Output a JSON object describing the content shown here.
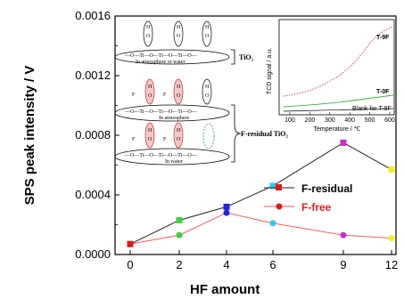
{
  "chart_data": {
    "type": "line",
    "x": [
      0,
      2,
      4,
      6,
      9,
      12
    ],
    "xlabel": "HF amount",
    "ylabel": "SPS peak intensity / V",
    "ylim": [
      0,
      0.0016
    ],
    "xticks": [
      "0",
      "2",
      "4",
      "6",
      "9",
      "12"
    ],
    "yticks": [
      "0.0000",
      "0.0004",
      "0.0008",
      "0.0012",
      "0.0016"
    ],
    "legend_position": "right-center",
    "series": [
      {
        "name": "F-residual",
        "values": [
          7e-05,
          0.00023,
          0.00032,
          0.00046,
          0.00075,
          0.00057
        ],
        "line_color": "#222222",
        "label_color": "#000000"
      },
      {
        "name": "F-free",
        "values": [
          7e-05,
          0.00013,
          0.00028,
          0.00021,
          0.00013,
          0.00011
        ],
        "line_color": "#ff5a5a",
        "label_color": "#ee1c1c"
      }
    ],
    "marker_colors": [
      "#e01818",
      "#3cd23c",
      "#2323e0",
      "#2ec8ee",
      "#cc2ccc",
      "#f0f020"
    ],
    "inset": {
      "xlabel": "Temperature / ℃",
      "ylabel": "TCD signal / a.u.",
      "xticks": [
        "100",
        "200",
        "300",
        "400",
        "500",
        "600"
      ],
      "labels": [
        "T-9F",
        "T-0F",
        "Blank for T-9F"
      ]
    },
    "schematic": {
      "label_tio2": "TiO₂",
      "label_fres": "F-residual TiO₂",
      "caption_top": "In atmosphere or water",
      "caption_mid": "In atmosphere",
      "caption_bot": "In water",
      "chain_text": "—O—Ti—O—Ti—O—Ti—O—",
      "atom_h": "H",
      "atom_o": "O",
      "atom_f": "F"
    }
  }
}
